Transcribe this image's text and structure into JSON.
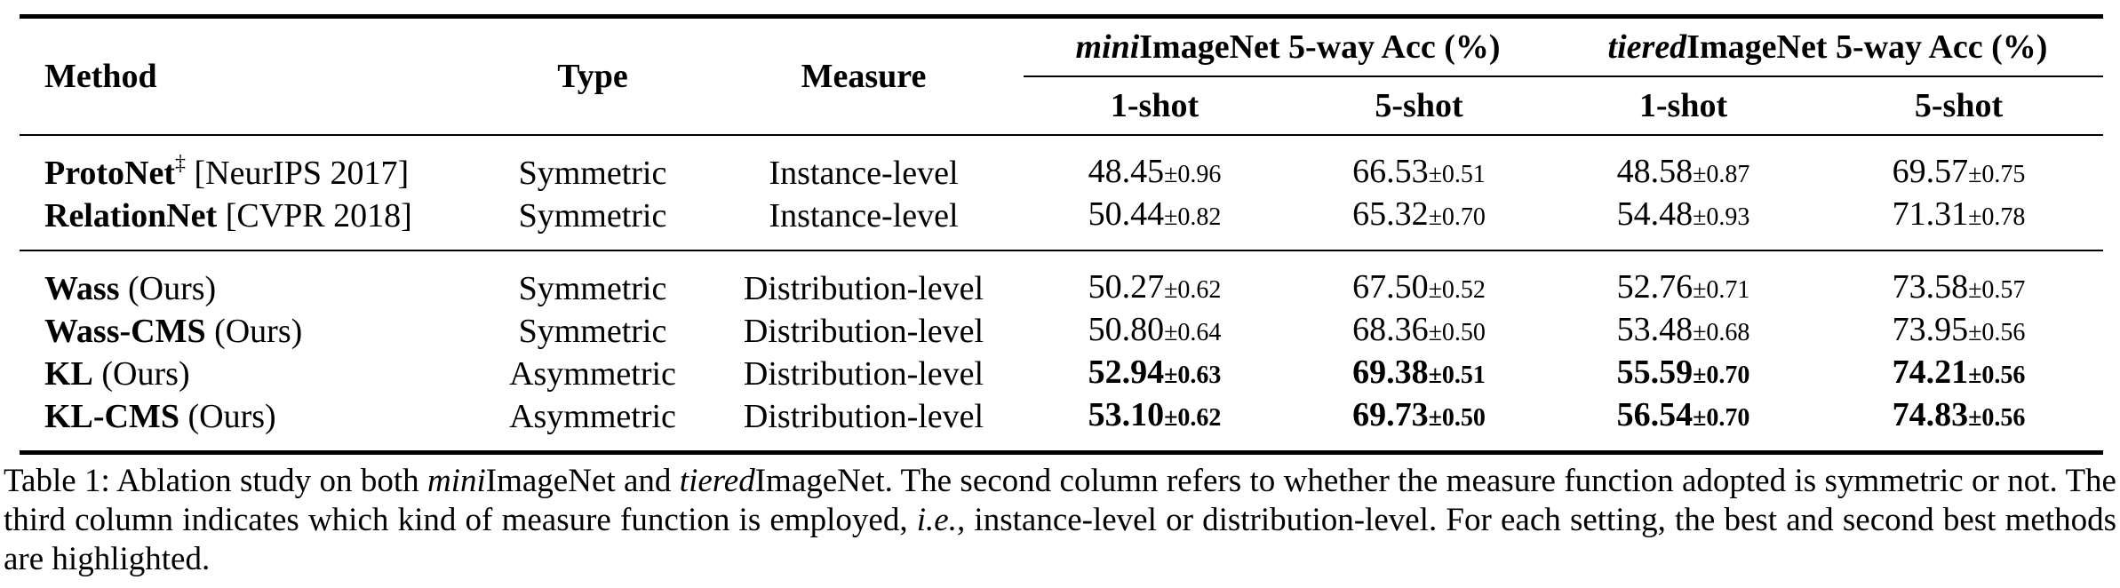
{
  "table": {
    "headers": {
      "method": "Method",
      "type": "Type",
      "measure": "Measure",
      "mini_group_italic": "mini",
      "mini_group_rest": "ImageNet 5-way Acc (%)",
      "tiered_group_italic": "tiered",
      "tiered_group_rest": "ImageNet 5-way Acc (%)",
      "shot1": "1-shot",
      "shot5": "5-shot"
    },
    "groups": [
      {
        "rows": [
          {
            "method": "ProtoNet",
            "marker": "‡",
            "suffix": " [NeurIPS 2017]",
            "type": "Symmetric",
            "measure": "Instance-level",
            "mini1": "48.45",
            "mini1_sd": "±0.96",
            "mini5": "66.53",
            "mini5_sd": "±0.51",
            "tier1": "48.58",
            "tier1_sd": "±0.87",
            "tier5": "69.57",
            "tier5_sd": "±0.75"
          },
          {
            "method": "RelationNet",
            "marker": "",
            "suffix": " [CVPR 2018]",
            "type": "Symmetric",
            "measure": "Instance-level",
            "mini1": "50.44",
            "mini1_sd": "±0.82",
            "mini5": "65.32",
            "mini5_sd": "±0.70",
            "tier1": "54.48",
            "tier1_sd": "±0.93",
            "tier5": "71.31",
            "tier5_sd": "±0.78"
          }
        ]
      },
      {
        "rows": [
          {
            "method": "Wass",
            "marker": "",
            "suffix": " (Ours)",
            "type": "Symmetric",
            "measure": "Distribution-level",
            "mini1": "50.27",
            "mini1_sd": "±0.62",
            "mini5": "67.50",
            "mini5_sd": "±0.52",
            "tier1": "52.76",
            "tier1_sd": "±0.71",
            "tier5": "73.58",
            "tier5_sd": "±0.57"
          },
          {
            "method": "Wass-CMS",
            "marker": "",
            "suffix": " (Ours)",
            "type": "Symmetric",
            "measure": "Distribution-level",
            "mini1": "50.80",
            "mini1_sd": "±0.64",
            "mini5": "68.36",
            "mini5_sd": "±0.50",
            "tier1": "53.48",
            "tier1_sd": "±0.68",
            "tier5": "73.95",
            "tier5_sd": "±0.56"
          },
          {
            "method": "KL",
            "marker": "",
            "suffix": " (Ours)",
            "type": "Asymmetric",
            "measure": "Distribution-level",
            "mini1": "52.94",
            "mini1_sd": "±0.63",
            "mini5": "69.38",
            "mini5_sd": "±0.51",
            "tier1": "55.59",
            "tier1_sd": "±0.70",
            "tier5": "74.21",
            "tier5_sd": "±0.56",
            "highlight": true
          },
          {
            "method": "KL-CMS",
            "marker": "",
            "suffix": " (Ours)",
            "type": "Asymmetric",
            "measure": "Distribution-level",
            "mini1": "53.10",
            "mini1_sd": "±0.62",
            "mini5": "69.73",
            "mini5_sd": "±0.50",
            "tier1": "56.54",
            "tier1_sd": "±0.70",
            "tier5": "74.83",
            "tier5_sd": "±0.56",
            "highlight": true
          }
        ]
      }
    ]
  },
  "caption": {
    "t1": "Table 1: Ablation study on both ",
    "i1": "mini",
    "t2": "ImageNet and ",
    "i2": "tiered",
    "t3": "ImageNet. The second column refers to whether the measure function adopted is symmetric or not. The third column indicates which kind of measure function is employed, ",
    "i3": "i.e.,",
    "t4": " instance-level or distribution-level. For each setting, the best and second best methods are highlighted."
  }
}
